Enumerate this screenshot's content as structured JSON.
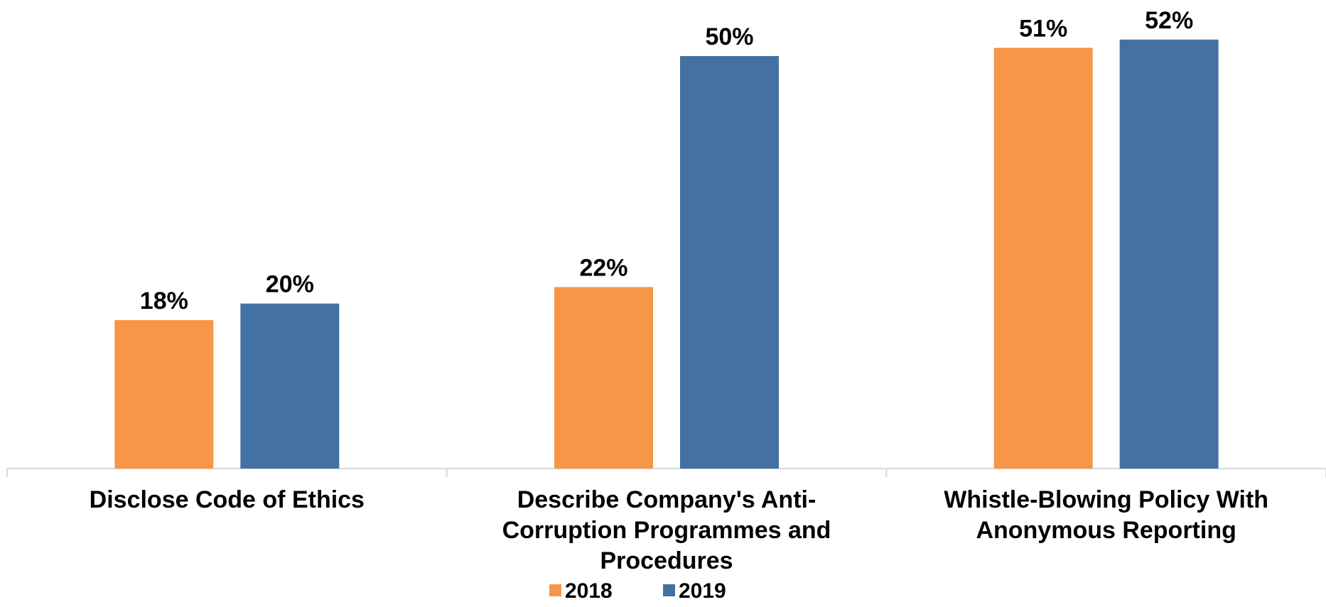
{
  "chart_data": {
    "type": "bar",
    "categories": [
      [
        "Disclose Code of Ethics"
      ],
      [
        "Describe Company's Anti-",
        "Corruption Programmes and",
        "Procedures"
      ],
      [
        "Whistle-Blowing Policy With",
        "Anonymous Reporting"
      ]
    ],
    "series": [
      {
        "name": "2018",
        "values": [
          18,
          22,
          51
        ],
        "labels": [
          "18%",
          "22%",
          "51%"
        ],
        "color": "#F79646"
      },
      {
        "name": "2019",
        "values": [
          20,
          50,
          52
        ],
        "labels": [
          "20%",
          "50%",
          "52%"
        ],
        "color": "#4371A1"
      }
    ],
    "ylim": [
      0,
      55
    ],
    "grid": false,
    "legend_position": "bottom-center",
    "axis_color": "#D9D9D9"
  }
}
